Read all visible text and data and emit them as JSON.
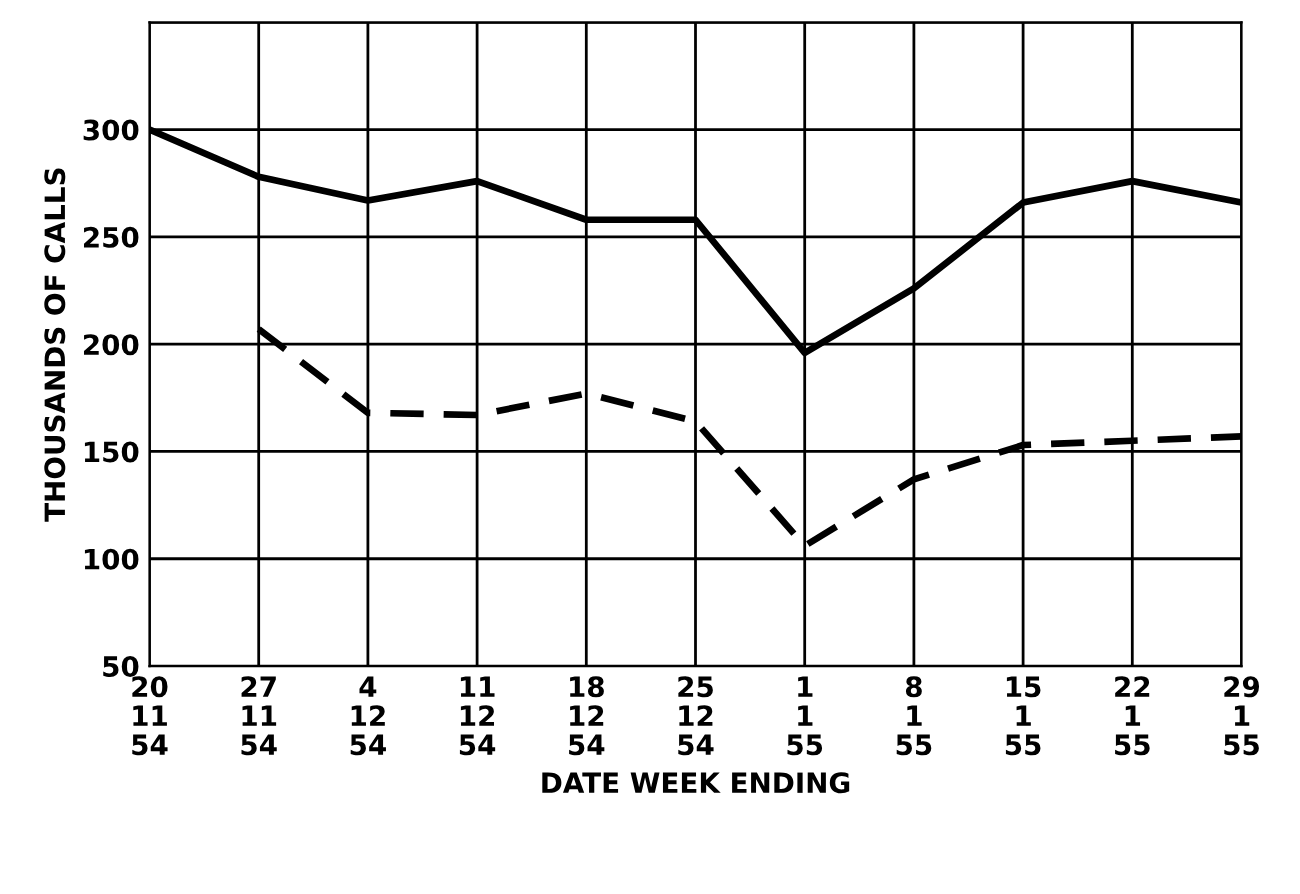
{
  "chart_data": {
    "type": "line",
    "xlabel": "DATE WEEK ENDING",
    "ylabel": "THOUSANDS OF CALLS",
    "categories": [
      "20\n11\n54",
      "27\n11\n54",
      "4\n12\n54",
      "11\n12\n54",
      "18\n12\n54",
      "25\n12\n54",
      "1\n1\n55",
      "8\n1\n55",
      "15\n1\n55",
      "22\n1\n55",
      "29\n1\n55"
    ],
    "series": [
      {
        "color": "#000000",
        "line_style": "solid",
        "values": [
          300,
          278,
          267,
          276,
          258,
          258,
          196,
          226,
          266,
          276,
          266
        ]
      },
      {
        "color": "#000000",
        "line_style": "dashed",
        "values": [
          null,
          207,
          168,
          167,
          177,
          164,
          106,
          137,
          153,
          155,
          157
        ]
      }
    ],
    "ylim": [
      50,
      350
    ],
    "yticks": [
      50,
      100,
      150,
      200,
      250,
      300,
      {
        "value": 350,
        "label": null
      }
    ],
    "grid": true,
    "marker": "none"
  }
}
